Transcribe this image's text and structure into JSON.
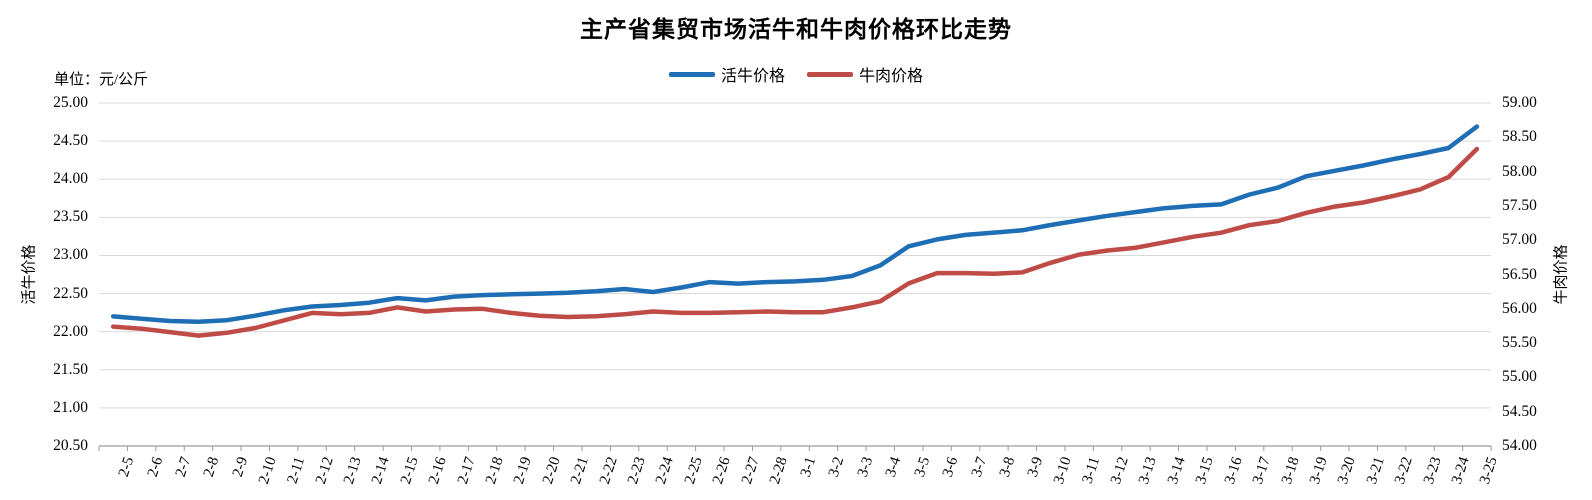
{
  "title": "主产省集贸市场活牛和牛肉价格环比走势",
  "unit_label": "单位：元/公斤",
  "legend": [
    {
      "label": "活牛价格",
      "color": "#1E6EB5"
    },
    {
      "label": "牛肉价格",
      "color": "#BE4B46"
    }
  ],
  "left_axis": {
    "title": "活牛价格",
    "ticks": [
      "25.00",
      "24.50",
      "24.00",
      "23.50",
      "23.00",
      "22.50",
      "22.00",
      "21.50",
      "21.00",
      "20.50"
    ],
    "min": 20.5,
    "max": 25.0
  },
  "right_axis": {
    "title": "牛肉价格",
    "ticks": [
      "59.00",
      "58.50",
      "58.00",
      "57.50",
      "57.00",
      "56.50",
      "56.00",
      "55.50",
      "55.00",
      "54.50",
      "54.00"
    ],
    "min": 54.0,
    "max": 59.0
  },
  "chart_data": {
    "type": "line",
    "title": "主产省集贸市场活牛和牛肉价格环比走势",
    "unit": "元/公斤",
    "grid": true,
    "legend_position": "top",
    "categories": [
      "2-5",
      "2-6",
      "2-7",
      "2-8",
      "2-9",
      "2-10",
      "2-11",
      "2-12",
      "2-13",
      "2-14",
      "2-15",
      "2-16",
      "2-17",
      "2-18",
      "2-19",
      "2-20",
      "2-21",
      "2-22",
      "2-23",
      "2-24",
      "2-25",
      "2-26",
      "2-27",
      "2-28",
      "3-1",
      "3-2",
      "3-3",
      "3-4",
      "3-5",
      "3-6",
      "3-7",
      "3-8",
      "3-9",
      "3-10",
      "3-11",
      "3-12",
      "3-13",
      "3-14",
      "3-15",
      "3-16",
      "3-17",
      "3-18",
      "3-19",
      "3-20",
      "3-21",
      "3-22",
      "3-23",
      "3-24",
      "3-25"
    ],
    "series": [
      {
        "name": "活牛价格",
        "axis": "left",
        "color": "#1E6EB5",
        "ylim": [
          20.5,
          25.0
        ],
        "values": [
          22.2,
          22.17,
          22.14,
          22.13,
          22.15,
          22.21,
          22.28,
          22.33,
          22.35,
          22.38,
          22.44,
          22.41,
          22.46,
          22.48,
          22.49,
          22.5,
          22.51,
          22.53,
          22.56,
          22.52,
          22.58,
          22.65,
          22.63,
          22.65,
          22.66,
          22.68,
          22.73,
          22.87,
          23.12,
          23.21,
          23.27,
          23.3,
          23.33,
          23.4,
          23.46,
          23.52,
          23.57,
          23.62,
          23.65,
          23.67,
          23.8,
          23.89,
          24.04,
          24.11,
          24.18,
          24.26,
          24.33,
          24.41,
          24.69
        ]
      },
      {
        "name": "牛肉价格",
        "axis": "right",
        "color": "#BE4B46",
        "ylim": [
          54.0,
          59.0
        ],
        "values": [
          55.74,
          55.71,
          55.66,
          55.61,
          55.65,
          55.72,
          55.83,
          55.94,
          55.92,
          55.94,
          56.02,
          55.96,
          55.99,
          56.0,
          55.94,
          55.9,
          55.88,
          55.89,
          55.92,
          55.96,
          55.94,
          55.94,
          55.95,
          55.96,
          55.95,
          55.95,
          56.02,
          56.11,
          56.37,
          56.52,
          56.52,
          56.51,
          56.53,
          56.67,
          56.79,
          56.85,
          56.89,
          56.97,
          57.05,
          57.11,
          57.22,
          57.28,
          57.4,
          57.49,
          57.55,
          57.64,
          57.74,
          57.92,
          58.33
        ]
      }
    ],
    "colors": {
      "grid": "#D9D9D9",
      "axis": "#9B9B9B",
      "text": "#000000"
    }
  }
}
